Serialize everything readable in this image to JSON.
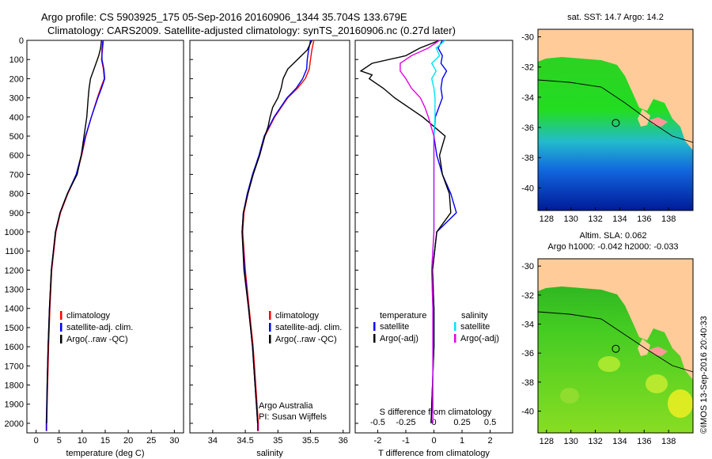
{
  "header": {
    "line1": "Argo profile: CS 5903925_175 05-Sep-2016 20160906_1344 35.704S 133.679E",
    "line2": "Climatology: CARS2009. Satellite-adjusted climatology: synTS_20160906.nc (0.27d later)"
  },
  "colors": {
    "red": "#ff0000",
    "blue": "#0000ff",
    "black": "#000000",
    "cyan": "#00e5ee",
    "magenta": "#e600e6",
    "land": "#ffcc99",
    "land_patch": "#ff9999"
  },
  "chart_data": [
    {
      "id": "temperature",
      "type": "line",
      "xlabel": "temperature (deg C)",
      "ylabel": "",
      "xlim": [
        -2,
        32
      ],
      "ylim": [
        2050,
        0
      ],
      "xticks": [
        0,
        5,
        10,
        15,
        20,
        25,
        30
      ],
      "xtick_labels": [
        "0",
        "5",
        "10",
        "15",
        "20",
        "25",
        "30"
      ],
      "yticks": [
        0,
        100,
        200,
        300,
        400,
        500,
        600,
        700,
        800,
        900,
        1000,
        1100,
        1200,
        1300,
        1400,
        1500,
        1600,
        1700,
        1800,
        1900,
        2000
      ],
      "ytick_labels": [
        "0",
        "100",
        "200",
        "300",
        "400",
        "500",
        "600",
        "700",
        "800",
        "900",
        "1000",
        "1100",
        "1200",
        "1300",
        "1400",
        "1500",
        "1600",
        "1700",
        "1800",
        "1900",
        "2000"
      ],
      "legend": [
        "climatology",
        "satellite-adj. clim.",
        "Argo(..raw -QC)"
      ],
      "series": [
        {
          "name": "climatology",
          "color": "red",
          "depth": [
            0,
            50,
            100,
            150,
            200,
            250,
            300,
            400,
            500,
            600,
            700,
            800,
            900,
            1000,
            1200,
            1400,
            1600,
            1800,
            2000,
            2040
          ],
          "values": [
            14.6,
            14.4,
            14.2,
            14.6,
            14.8,
            14.0,
            13.3,
            12.0,
            10.8,
            9.9,
            8.8,
            6.9,
            5.3,
            4.3,
            3.4,
            3.0,
            2.7,
            2.5,
            2.3,
            2.3
          ]
        },
        {
          "name": "satellite-adj. clim.",
          "color": "blue",
          "depth": [
            0,
            50,
            100,
            150,
            200,
            250,
            300,
            400,
            500,
            600,
            700,
            800,
            900,
            1000,
            1200,
            1400,
            1600,
            1800,
            2000,
            2040
          ],
          "values": [
            14.5,
            14.3,
            14.3,
            14.7,
            14.9,
            14.2,
            13.4,
            12.0,
            10.7,
            9.8,
            8.7,
            6.8,
            5.2,
            4.2,
            3.3,
            2.9,
            2.6,
            2.4,
            2.2,
            2.2
          ]
        },
        {
          "name": "Argo(..raw -QC)",
          "color": "black",
          "depth": [
            0,
            40,
            80,
            120,
            160,
            200,
            250,
            300,
            400,
            500,
            600,
            700,
            800,
            900,
            1000,
            1200,
            1400,
            1600,
            1800,
            2000
          ],
          "values": [
            14.2,
            14.0,
            13.6,
            13.0,
            12.4,
            11.8,
            11.5,
            11.3,
            11.0,
            10.4,
            9.8,
            8.9,
            6.8,
            5.2,
            4.2,
            3.3,
            2.9,
            2.6,
            2.4,
            2.3
          ]
        }
      ]
    },
    {
      "id": "salinity",
      "type": "line",
      "xlabel": "salinity",
      "xlim": [
        33.65,
        36.1
      ],
      "ylim": [
        2050,
        0
      ],
      "xticks": [
        34,
        34.5,
        35,
        35.5,
        36
      ],
      "xtick_labels": [
        "34",
        "34.5",
        "35",
        "35.5",
        "36"
      ],
      "legend": [
        "climatology",
        "satellite-adj. clim.",
        "Argo(..raw -QC)"
      ],
      "annotation": [
        "Argo Australia",
        "PI: Susan Wijffels"
      ],
      "series": [
        {
          "name": "climatology",
          "color": "red",
          "depth": [
            0,
            50,
            100,
            150,
            200,
            250,
            300,
            400,
            500,
            600,
            700,
            800,
            900,
            1000,
            1200,
            1400,
            1600,
            1800,
            1900,
            2000,
            2040
          ],
          "values": [
            35.55,
            35.52,
            35.5,
            35.48,
            35.42,
            35.3,
            35.15,
            34.95,
            34.8,
            34.72,
            34.62,
            34.54,
            34.48,
            34.46,
            34.5,
            34.56,
            34.62,
            34.66,
            34.68,
            34.7,
            34.7
          ]
        },
        {
          "name": "satellite-adj. clim.",
          "color": "blue",
          "depth": [
            0,
            50,
            100,
            150,
            200,
            250,
            300,
            400,
            500,
            600,
            700,
            800,
            900,
            1000,
            1200,
            1400,
            1600,
            1800,
            1900,
            2000,
            2040
          ],
          "values": [
            35.5,
            35.47,
            35.45,
            35.44,
            35.38,
            35.28,
            35.14,
            34.94,
            34.79,
            34.71,
            34.61,
            34.53,
            34.47,
            34.45,
            34.49,
            34.55,
            34.61,
            34.65,
            34.67,
            34.69,
            34.69
          ]
        },
        {
          "name": "Argo(..raw -QC)",
          "color": "black",
          "depth": [
            0,
            50,
            100,
            150,
            200,
            250,
            300,
            350,
            400,
            450,
            500,
            600,
            700,
            800,
            900,
            1000,
            1200,
            1400,
            1600,
            1800,
            1900,
            2000
          ],
          "values": [
            35.52,
            35.45,
            35.3,
            35.15,
            35.08,
            35.05,
            35.0,
            34.92,
            34.88,
            34.85,
            34.8,
            34.72,
            34.62,
            34.54,
            34.47,
            34.45,
            34.48,
            34.55,
            34.61,
            34.65,
            34.67,
            34.69
          ]
        }
      ]
    },
    {
      "id": "difference",
      "type": "line",
      "xlabel": "T difference from climatology",
      "xlabel_top": "S difference from climatology",
      "xlim_T": [
        -2.8,
        2.8
      ],
      "xlim_S": [
        -0.7,
        0.7
      ],
      "ylim": [
        2050,
        0
      ],
      "xticks_T": [
        -2,
        -1,
        0,
        1,
        2
      ],
      "xtick_labels_T": [
        "-2",
        "-1",
        "0",
        "1",
        "2"
      ],
      "xticks_S": [
        -0.5,
        -0.25,
        0,
        0.25,
        0.5
      ],
      "xtick_labels_S": [
        "-0.5",
        "-0.25",
        "0",
        "0.25",
        "0.5"
      ],
      "legend_left_title": "temperature",
      "legend_right_title": "salinity",
      "legend_left": [
        "satellite",
        "Argo(-adj)"
      ],
      "legend_right": [
        "satellite",
        "Argo(-adj)"
      ],
      "series": [
        {
          "name": "T satellite",
          "color": "blue",
          "axis": "T",
          "depth": [
            0,
            40,
            80,
            120,
            160,
            200,
            250,
            300,
            400,
            500,
            600,
            700,
            800,
            900,
            1000,
            1200,
            1400,
            1600,
            1800,
            2000
          ],
          "values": [
            0.3,
            0.15,
            0.3,
            0.25,
            0.45,
            0.3,
            0.25,
            0.3,
            0.05,
            0.0,
            0.1,
            0.3,
            0.6,
            0.8,
            0.1,
            -0.05,
            0.0,
            0.0,
            -0.05,
            -0.1
          ]
        },
        {
          "name": "T Argo(-adj)",
          "color": "black",
          "axis": "T",
          "depth": [
            0,
            40,
            80,
            120,
            160,
            180,
            200,
            250,
            300,
            350,
            400,
            500,
            600,
            700,
            800,
            900,
            1000,
            1200,
            1400,
            1600,
            1800,
            2000
          ],
          "values": [
            0.2,
            -0.5,
            -1.0,
            -2.2,
            -2.6,
            -2.2,
            -2.3,
            -1.8,
            -1.4,
            -0.9,
            -0.4,
            0.4,
            0.2,
            0.3,
            0.55,
            0.6,
            0.1,
            -0.05,
            0.0,
            0.0,
            -0.05,
            -0.1
          ]
        },
        {
          "name": "S satellite",
          "color": "cyan",
          "axis": "S",
          "depth": [
            0,
            40,
            80,
            120,
            160,
            200,
            250,
            300,
            400,
            500,
            600,
            700,
            800,
            900,
            1000,
            1200,
            1400,
            1600,
            1800,
            2000
          ],
          "values": [
            0.1,
            0.02,
            0.05,
            -0.02,
            0.02,
            -0.02,
            0.0,
            0.01,
            0.01,
            0.0,
            0.0,
            0.0,
            0.0,
            0.0,
            0.0,
            -0.02,
            -0.01,
            -0.01,
            -0.01,
            -0.01
          ]
        },
        {
          "name": "S Argo(-adj)",
          "color": "magenta",
          "axis": "S",
          "depth": [
            0,
            40,
            80,
            120,
            160,
            200,
            250,
            300,
            350,
            400,
            500,
            600,
            700,
            800,
            900,
            1000,
            1200,
            1400,
            1600,
            1800,
            2000
          ],
          "values": [
            0.05,
            -0.05,
            -0.2,
            -0.3,
            -0.3,
            -0.25,
            -0.2,
            -0.12,
            -0.08,
            -0.05,
            0.0,
            0.0,
            0.0,
            0.0,
            0.0,
            0.0,
            -0.02,
            -0.01,
            -0.01,
            -0.01,
            -0.01
          ]
        }
      ]
    },
    {
      "id": "sst-map",
      "type": "heatmap",
      "title": "sat. SST: 14.7 Argo: 14.2",
      "xlim": [
        127.3,
        140
      ],
      "ylim": [
        -41.5,
        -29.5
      ],
      "xticks": [
        128,
        130,
        132,
        134,
        136,
        138
      ],
      "xtick_labels": [
        "128",
        "130",
        "132",
        "134",
        "136",
        "138"
      ],
      "yticks": [
        -30,
        -32,
        -34,
        -36,
        -38,
        -40
      ],
      "ytick_labels": [
        "-30",
        "-32",
        "-34",
        "-36",
        "-38",
        "-40"
      ],
      "marker": {
        "lon": 133.679,
        "lat": -35.704
      }
    },
    {
      "id": "sla-map",
      "type": "heatmap",
      "title_lines": [
        "Altim. SLA: 0.062",
        "Argo h1000: -0.042 h2000: -0.033"
      ],
      "xlim": [
        127.3,
        140
      ],
      "ylim": [
        -41.5,
        -29.5
      ],
      "xticks": [
        128,
        130,
        132,
        134,
        136,
        138
      ],
      "xtick_labels": [
        "128",
        "130",
        "132",
        "134",
        "136",
        "138"
      ],
      "yticks": [
        -30,
        -32,
        -34,
        -36,
        -38,
        -40
      ],
      "ytick_labels": [
        "-30",
        "-32",
        "-34",
        "-36",
        "-38",
        "-40"
      ],
      "marker": {
        "lon": 133.679,
        "lat": -35.704
      }
    }
  ],
  "footer": {
    "credit": "©IMOS 13-Sep-2016 20:40:33"
  }
}
